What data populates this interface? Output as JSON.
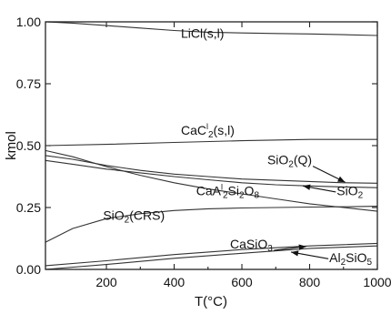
{
  "chart_data": {
    "type": "line",
    "xlabel": "T(°C)",
    "ylabel": "kmol",
    "xlim": [
      20,
      1000
    ],
    "ylim": [
      0,
      1.0
    ],
    "x_ticks": [
      200,
      400,
      600,
      800,
      1000
    ],
    "x_tick_labels": [
      "200",
      "400",
      "600",
      "800",
      "1000"
    ],
    "y_ticks": [
      0,
      0.25,
      0.5,
      0.75,
      1.0
    ],
    "y_tick_labels": [
      "0.00",
      "0.25",
      "0.50",
      "0.75",
      "1.00"
    ],
    "grid": false,
    "series": [
      {
        "name": "LiCl(s,l)",
        "x": [
          20,
          100,
          200,
          300,
          400,
          500,
          600,
          700,
          800,
          900,
          1000
        ],
        "y": [
          1.0,
          0.995,
          0.985,
          0.975,
          0.965,
          0.958,
          0.955,
          0.953,
          0.951,
          0.948,
          0.945
        ]
      },
      {
        "name": "CaCl2(s,l)",
        "x": [
          20,
          200,
          400,
          600,
          800,
          1000
        ],
        "y": [
          0.5,
          0.505,
          0.513,
          0.52,
          0.525,
          0.525
        ]
      },
      {
        "name": "SiO2(Q)",
        "x": [
          20,
          100,
          200,
          300,
          400,
          500,
          600,
          700,
          800,
          900,
          1000
        ],
        "y": [
          0.46,
          0.445,
          0.42,
          0.4,
          0.385,
          0.375,
          0.365,
          0.36,
          0.355,
          0.35,
          0.348
        ]
      },
      {
        "name": "SiO2",
        "x": [
          20,
          100,
          200,
          300,
          400,
          500,
          600,
          700,
          800,
          900,
          1000
        ],
        "y": [
          0.44,
          0.425,
          0.405,
          0.39,
          0.375,
          0.362,
          0.35,
          0.342,
          0.337,
          0.333,
          0.33
        ]
      },
      {
        "name": "CaAl2Si2O8",
        "x": [
          20,
          100,
          200,
          300,
          400,
          500,
          600,
          700,
          800,
          900,
          1000
        ],
        "y": [
          0.48,
          0.455,
          0.415,
          0.38,
          0.35,
          0.325,
          0.305,
          0.285,
          0.265,
          0.25,
          0.235
        ]
      },
      {
        "name": "SiO2(CRS)",
        "x": [
          20,
          100,
          200,
          300,
          400,
          500,
          600,
          700,
          800,
          900,
          1000
        ],
        "y": [
          0.11,
          0.165,
          0.205,
          0.225,
          0.238,
          0.245,
          0.248,
          0.25,
          0.252,
          0.253,
          0.255
        ]
      },
      {
        "name": "CaSiO3",
        "x": [
          20,
          200,
          400,
          600,
          800,
          1000
        ],
        "y": [
          0.015,
          0.035,
          0.06,
          0.08,
          0.095,
          0.105
        ]
      },
      {
        "name": "Al2SiO5",
        "x": [
          20,
          200,
          400,
          600,
          800,
          1000
        ],
        "y": [
          0.0,
          0.02,
          0.045,
          0.065,
          0.085,
          0.095
        ]
      }
    ],
    "annotations": [
      {
        "id": "licl",
        "text": "LiCl(s,l)",
        "x": 420,
        "y": 0.935
      },
      {
        "id": "cacl2",
        "main": "CaC",
        "sup": "l",
        "sub": "2",
        "rest": "(s,l)",
        "x": 420,
        "y": 0.545
      },
      {
        "id": "sio2q",
        "main": "SiO",
        "sub": "2",
        "rest": "(Q)",
        "x": 675,
        "y": 0.425,
        "arrow_to": [
          905,
          0.352
        ]
      },
      {
        "id": "cal",
        "parts": [
          "CaA",
          "l",
          "2",
          "Si",
          "2",
          "O",
          "8"
        ],
        "x": 465,
        "y": 0.3
      },
      {
        "id": "sio2",
        "main": "SiO",
        "sub": "2",
        "rest": "",
        "x": 880,
        "y": 0.3,
        "arrow_to": [
          780,
          0.337
        ]
      },
      {
        "id": "sio2crs",
        "main": "SiO",
        "sub": "2",
        "rest": "(CRS)",
        "x": 190,
        "y": 0.2
      },
      {
        "id": "casio3",
        "main": "CaSiO",
        "sub": "3",
        "rest": "",
        "x": 565,
        "y": 0.085,
        "arrow_to": [
          790,
          0.093
        ]
      },
      {
        "id": "al2sio5",
        "parts": [
          "Al",
          "2",
          "SiO",
          "5"
        ],
        "x": 858,
        "y": 0.03,
        "arrow_to": [
          745,
          0.07
        ]
      }
    ]
  }
}
